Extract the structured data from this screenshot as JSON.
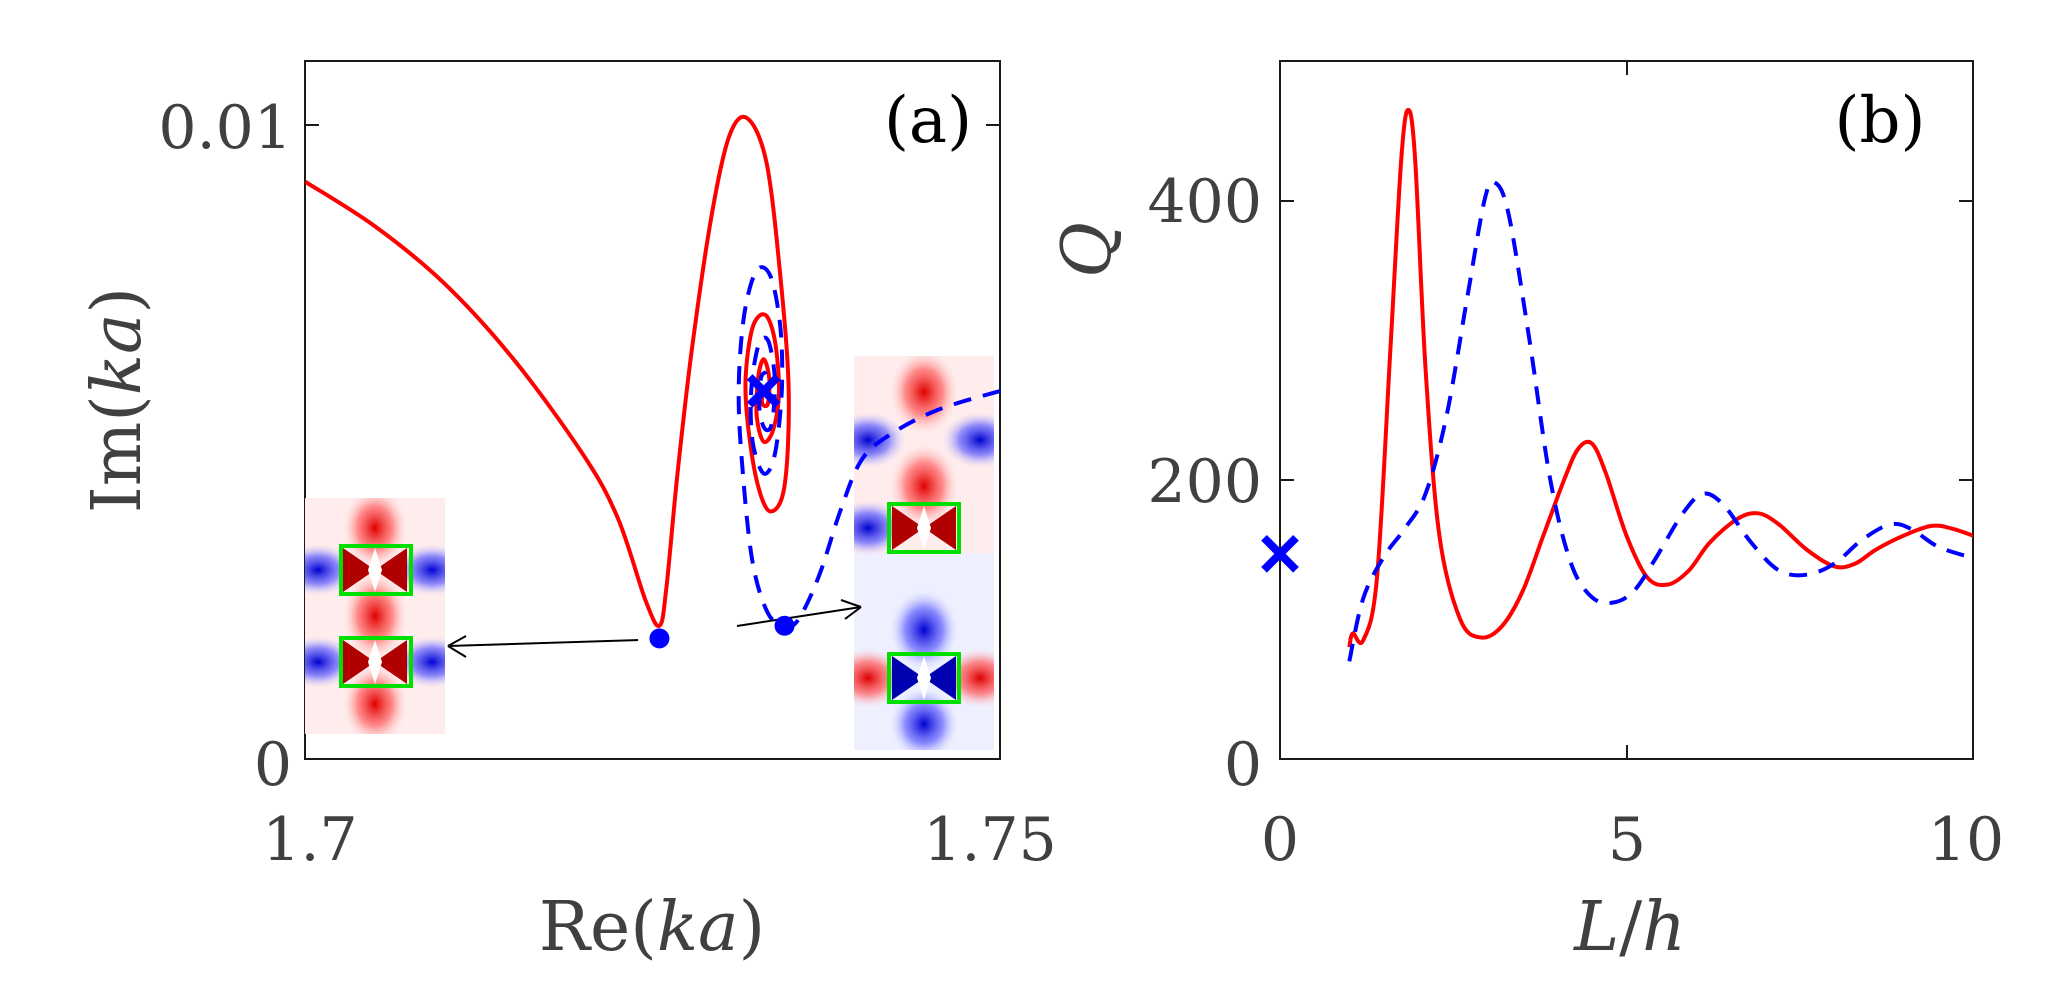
{
  "chart_data": [
    {
      "type": "line",
      "panel": "a",
      "panel_label": "(a)",
      "xlabel_main": "Re(",
      "xlabel_var": "ka",
      "xlabel_end": ")",
      "ylabel_main": "Im(",
      "ylabel_var": "ka",
      "ylabel_end": ")",
      "xlim": [
        1.7,
        1.75
      ],
      "ylim": [
        0,
        0.011
      ],
      "xticks": [
        {
          "value": 1.7,
          "label": "1.7"
        },
        {
          "value": 1.75,
          "label": "1.75"
        }
      ],
      "yticks": [
        {
          "value": 0,
          "label": "0"
        },
        {
          "value": 0.01,
          "label": "0.01"
        }
      ],
      "colors": {
        "red": "#ff0000",
        "blue": "#0000ff",
        "box": "#00e000"
      },
      "series": [
        {
          "name": "solid-red",
          "style": "solid",
          "color": "#ff0000",
          "points": [
            [
              1.7,
              0.0091
            ],
            [
              1.705,
              0.0084
            ],
            [
              1.71,
              0.0075
            ],
            [
              1.715,
              0.0063
            ],
            [
              1.72,
              0.0048
            ],
            [
              1.7225,
              0.0038
            ],
            [
              1.7245,
              0.0025
            ],
            [
              1.7255,
              0.0021
            ],
            [
              1.726,
              0.0027
            ],
            [
              1.7268,
              0.0045
            ],
            [
              1.7278,
              0.0064
            ],
            [
              1.7292,
              0.0085
            ],
            [
              1.7305,
              0.0098
            ],
            [
              1.7318,
              0.0101
            ],
            [
              1.7332,
              0.0094
            ],
            [
              1.7342,
              0.0076
            ],
            [
              1.7348,
              0.0058
            ],
            [
              1.7345,
              0.0043
            ],
            [
              1.7335,
              0.0039
            ],
            [
              1.7326,
              0.0043
            ],
            [
              1.7319,
              0.0052
            ],
            [
              1.7317,
              0.006
            ],
            [
              1.7322,
              0.0068
            ],
            [
              1.7331,
              0.007
            ],
            [
              1.7338,
              0.0066
            ],
            [
              1.7341,
              0.0058
            ],
            [
              1.7337,
              0.0052
            ],
            [
              1.733,
              0.005
            ],
            [
              1.7325,
              0.0054
            ],
            [
              1.7326,
              0.006
            ],
            [
              1.733,
              0.0063
            ],
            [
              1.7334,
              0.006
            ],
            [
              1.7333,
              0.0056
            ],
            [
              1.7329,
              0.0056
            ],
            [
              1.7329,
              0.0058
            ]
          ]
        },
        {
          "name": "dashed-blue",
          "style": "dashed",
          "color": "#0000ff",
          "points": [
            [
              1.75,
              0.0058
            ],
            [
              1.7455,
              0.0055
            ],
            [
              1.742,
              0.0051
            ],
            [
              1.74,
              0.0047
            ],
            [
              1.7385,
              0.0039
            ],
            [
              1.737,
              0.0029
            ],
            [
              1.7355,
              0.0022
            ],
            [
              1.7345,
              0.0021
            ],
            [
              1.7333,
              0.0023
            ],
            [
              1.7322,
              0.0031
            ],
            [
              1.7315,
              0.0045
            ],
            [
              1.7312,
              0.0058
            ],
            [
              1.7316,
              0.007
            ],
            [
              1.7325,
              0.0077
            ],
            [
              1.7335,
              0.0076
            ],
            [
              1.7342,
              0.0068
            ],
            [
              1.7343,
              0.0058
            ],
            [
              1.7338,
              0.0048
            ],
            [
              1.733,
              0.0045
            ],
            [
              1.7322,
              0.005
            ],
            [
              1.7321,
              0.0058
            ],
            [
              1.7326,
              0.0065
            ],
            [
              1.7333,
              0.0066
            ],
            [
              1.7338,
              0.006
            ],
            [
              1.7336,
              0.0053
            ],
            [
              1.7331,
              0.0052
            ],
            [
              1.7327,
              0.0055
            ],
            [
              1.7328,
              0.006
            ],
            [
              1.7332,
              0.0061
            ]
          ]
        }
      ],
      "markers": [
        {
          "name": "exceptional-point",
          "shape": "x",
          "x": 1.733,
          "y": 0.0058,
          "color": "#0000ff"
        },
        {
          "name": "dot-red-branch",
          "shape": "dot",
          "x": 1.7255,
          "y": 0.0019,
          "color": "#0000ff"
        },
        {
          "name": "dot-blue-branch",
          "shape": "dot",
          "x": 1.7345,
          "y": 0.0021,
          "color": "#0000ff"
        }
      ],
      "insets": [
        "mode-profile-red-branch",
        "mode-profile-blue-branch"
      ]
    },
    {
      "type": "line",
      "panel": "b",
      "panel_label": "(b)",
      "xlabel_var": "L",
      "xlabel_sep": "/",
      "xlabel_var2": "h",
      "ylabel": "Q",
      "xlim": [
        0,
        10
      ],
      "ylim": [
        0,
        500
      ],
      "xticks": [
        {
          "value": 0,
          "label": "0"
        },
        {
          "value": 5,
          "label": "5"
        },
        {
          "value": 10,
          "label": "10"
        }
      ],
      "yticks": [
        {
          "value": 0,
          "label": "0"
        },
        {
          "value": 200,
          "label": "200"
        },
        {
          "value": 400,
          "label": "400"
        }
      ],
      "series": [
        {
          "name": "solid-red",
          "style": "solid",
          "color": "#ff0000",
          "points": [
            [
              1.0,
              80
            ],
            [
              1.05,
              90
            ],
            [
              1.2,
              85
            ],
            [
              1.4,
              130
            ],
            [
              1.6,
              300
            ],
            [
              1.75,
              430
            ],
            [
              1.85,
              465
            ],
            [
              1.95,
              430
            ],
            [
              2.1,
              280
            ],
            [
              2.3,
              160
            ],
            [
              2.6,
              100
            ],
            [
              2.9,
              87
            ],
            [
              3.2,
              95
            ],
            [
              3.5,
              120
            ],
            [
              3.8,
              160
            ],
            [
              4.1,
              200
            ],
            [
              4.3,
              222
            ],
            [
              4.5,
              226
            ],
            [
              4.7,
              205
            ],
            [
              5.0,
              160
            ],
            [
              5.3,
              130
            ],
            [
              5.6,
              125
            ],
            [
              5.9,
              135
            ],
            [
              6.2,
              155
            ],
            [
              6.6,
              172
            ],
            [
              6.9,
              176
            ],
            [
              7.2,
              168
            ],
            [
              7.6,
              150
            ],
            [
              8.0,
              138
            ],
            [
              8.3,
              140
            ],
            [
              8.6,
              150
            ],
            [
              9.0,
              160
            ],
            [
              9.4,
              167
            ],
            [
              9.7,
              165
            ],
            [
              10.0,
              160
            ]
          ]
        },
        {
          "name": "dashed-blue",
          "style": "dashed",
          "color": "#0000ff",
          "points": [
            [
              1.0,
              70
            ],
            [
              1.2,
              115
            ],
            [
              1.5,
              145
            ],
            [
              1.8,
              165
            ],
            [
              2.1,
              190
            ],
            [
              2.4,
              245
            ],
            [
              2.7,
              330
            ],
            [
              2.95,
              400
            ],
            [
              3.1,
              413
            ],
            [
              3.3,
              390
            ],
            [
              3.6,
              300
            ],
            [
              3.9,
              200
            ],
            [
              4.2,
              140
            ],
            [
              4.5,
              116
            ],
            [
              4.8,
              112
            ],
            [
              5.1,
              120
            ],
            [
              5.4,
              142
            ],
            [
              5.8,
              175
            ],
            [
              6.1,
              190
            ],
            [
              6.4,
              182
            ],
            [
              6.8,
              155
            ],
            [
              7.2,
              135
            ],
            [
              7.6,
              132
            ],
            [
              8.0,
              140
            ],
            [
              8.4,
              157
            ],
            [
              8.8,
              168
            ],
            [
              9.1,
              165
            ],
            [
              9.5,
              152
            ],
            [
              10.0,
              144
            ]
          ]
        }
      ],
      "markers": [
        {
          "name": "single-resonator-q",
          "shape": "x",
          "x": 0,
          "y": 147,
          "color": "#0000ff"
        }
      ]
    }
  ]
}
